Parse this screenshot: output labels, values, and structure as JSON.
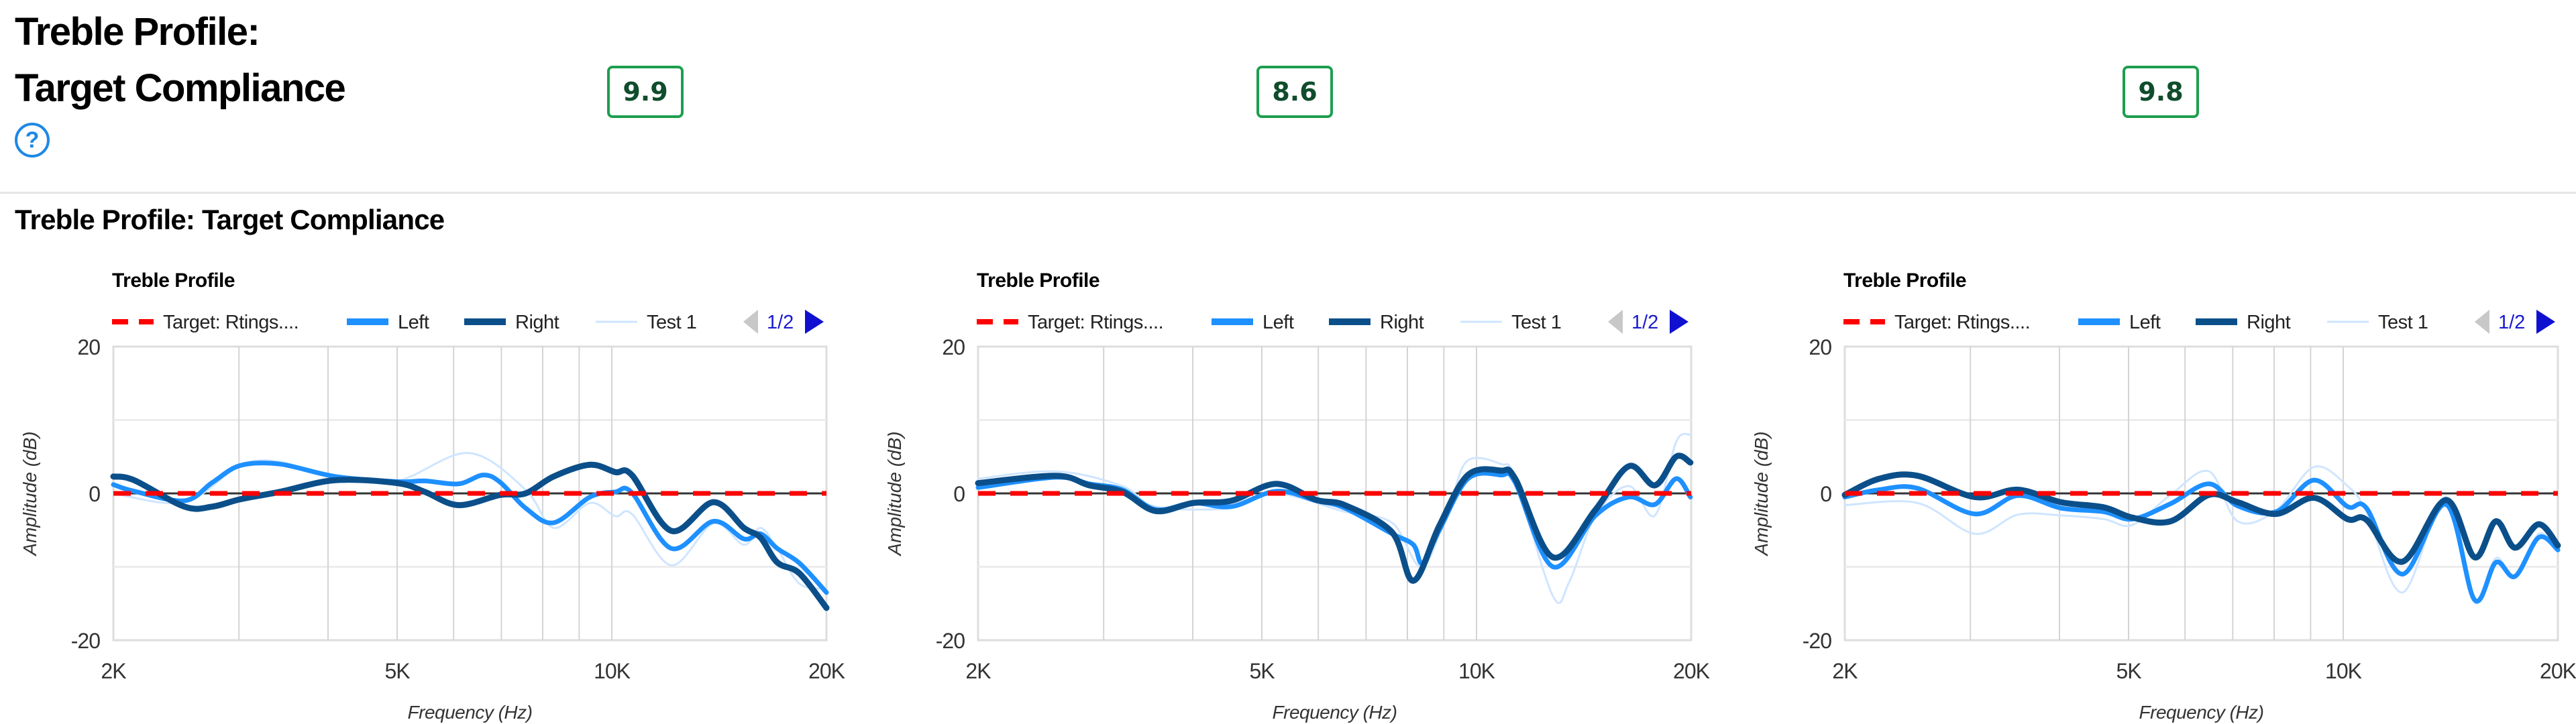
{
  "header": {
    "title_line1": "Treble Profile:",
    "title_line2": "Target Compliance",
    "help_icon": "question-circle-icon",
    "scores": [
      "9.9",
      "8.6",
      "9.8"
    ],
    "score_color": "#1e9e4f"
  },
  "section_title": "Treble Profile: Target Compliance",
  "chart_data": [
    {
      "type": "line",
      "title": "Treble Profile",
      "xlabel": "Frequency (Hz)",
      "ylabel": "Amplitude (dB)",
      "xscale": "log",
      "xlim": [
        2000,
        20000
      ],
      "ylim": [
        -20,
        20
      ],
      "xticks": [
        {
          "v": 2000,
          "label": "2K"
        },
        {
          "v": 5000,
          "label": "5K"
        },
        {
          "v": 10000,
          "label": "10K"
        },
        {
          "v": 20000,
          "label": "20K"
        }
      ],
      "yticks": [
        {
          "v": 20,
          "label": "20"
        },
        {
          "v": 0,
          "label": "0"
        },
        {
          "v": -20,
          "label": "-20"
        }
      ],
      "grid": true,
      "legend": {
        "placement": "top",
        "page": "1/2"
      },
      "series": [
        {
          "name": "Target: Rtings....",
          "color": "#ff0000",
          "style": "dashed",
          "x": [
            2000,
            20000
          ],
          "y": [
            0,
            0
          ]
        },
        {
          "name": "Left",
          "color": "#1e90ff",
          "style": "solid",
          "x": [
            2000,
            2138,
            2516,
            2754,
            3013,
            3420,
            4097,
            5003,
            5470,
            6096,
            6600,
            6978,
            7570,
            8288,
            9316,
            10110,
            10670,
            12120,
            13880,
            15320,
            16160,
            17060,
            18330,
            20000
          ],
          "y": [
            1.2,
            0.3,
            -1,
            1.5,
            3.8,
            4,
            2.3,
            1.6,
            1.7,
            1.3,
            2.5,
            1.5,
            -2,
            -4,
            -0.5,
            0.2,
            0.1,
            -7.5,
            -3.8,
            -6.2,
            -5.5,
            -7.5,
            -9.5,
            -13.5
          ]
        },
        {
          "name": "Right",
          "color": "#0b4f8a",
          "style": "solid",
          "x": [
            2000,
            2138,
            2516,
            2754,
            3013,
            3420,
            4097,
            5003,
            5470,
            6096,
            6978,
            7570,
            8288,
            9316,
            10110,
            10670,
            12120,
            13880,
            15320,
            16160,
            17060,
            18330,
            20000
          ],
          "y": [
            2.3,
            1.8,
            -1.8,
            -1.8,
            -0.8,
            0.2,
            1.8,
            1.4,
            0.2,
            -1.6,
            -0.2,
            0,
            2.3,
            3.9,
            2.9,
            2.5,
            -5.1,
            -1.2,
            -4.7,
            -6,
            -9.4,
            -10.9,
            -15.6
          ]
        },
        {
          "name": "Test 1",
          "color": "#cfe5ff",
          "style": "thin",
          "x": [
            2000,
            2516,
            3013,
            3420,
            4097,
            5003,
            6300,
            7570,
            8288,
            9316,
            10110,
            10670,
            12120,
            13880,
            15320,
            16160,
            17060,
            18330,
            20000
          ],
          "y": [
            0,
            -1.2,
            3.8,
            4.3,
            2.1,
            1.7,
            5.5,
            0.5,
            -4.7,
            -1.3,
            -3.1,
            -2.8,
            -9.8,
            -4.1,
            -7,
            -4.7,
            -7.5,
            -12.3,
            -13
          ]
        }
      ]
    },
    {
      "type": "line",
      "title": "Treble Profile",
      "xlabel": "Frequency (Hz)",
      "ylabel": "Amplitude (dB)",
      "xscale": "log",
      "xlim": [
        2000,
        20000
      ],
      "ylim": [
        -20,
        20
      ],
      "xticks": [
        {
          "v": 2000,
          "label": "2K"
        },
        {
          "v": 5000,
          "label": "5K"
        },
        {
          "v": 10000,
          "label": "10K"
        },
        {
          "v": 20000,
          "label": "20K"
        }
      ],
      "yticks": [
        {
          "v": 20,
          "label": "20"
        },
        {
          "v": 0,
          "label": "0"
        },
        {
          "v": -20,
          "label": "-20"
        }
      ],
      "grid": true,
      "legend": {
        "placement": "top",
        "page": "1/2"
      },
      "series": [
        {
          "name": "Target: Rtings....",
          "color": "#ff0000",
          "style": "dashed",
          "x": [
            2000,
            20000
          ],
          "y": [
            0,
            0
          ]
        },
        {
          "name": "Left",
          "color": "#1e90ff",
          "style": "solid",
          "x": [
            2000,
            2573,
            2865,
            3188,
            3548,
            4008,
            4530,
            5237,
            5965,
            6536,
            7614,
            8156,
            8400,
            8870,
            9726,
            10820,
            11330,
            12800,
            14690,
            16350,
            17790,
            19050,
            19950
          ],
          "y": [
            0.8,
            2.2,
            1.3,
            0.5,
            -2.2,
            -1.3,
            -1.8,
            0.3,
            -1,
            -2,
            -5.5,
            -7,
            -9.5,
            -5,
            2,
            2.5,
            1.5,
            -10,
            -3,
            -0.5,
            -1.5,
            2,
            -0.5
          ]
        },
        {
          "name": "Right",
          "color": "#0b4f8a",
          "style": "solid",
          "x": [
            2000,
            2573,
            2865,
            3188,
            3548,
            4008,
            4530,
            5237,
            5965,
            6536,
            7614,
            8156,
            8870,
            9726,
            10820,
            11330,
            12800,
            14690,
            16350,
            17790,
            19050,
            19950
          ],
          "y": [
            1.4,
            2.4,
            1.1,
            0.2,
            -2.4,
            -1.3,
            -1,
            1.3,
            -0.9,
            -1.6,
            -5.3,
            -11.9,
            -4.4,
            2.5,
            3.1,
            2,
            -8.7,
            -2.2,
            3.7,
            1.1,
            5,
            4.2
          ]
        },
        {
          "name": "Test 1",
          "color": "#cfe5ff",
          "style": "thin",
          "x": [
            2000,
            2573,
            3188,
            3548,
            4530,
            5237,
            6536,
            7614,
            8400,
            9200,
            9726,
            10820,
            11330,
            12800,
            13500,
            14690,
            16350,
            17790,
            19050,
            19950
          ],
          "y": [
            2,
            3,
            1,
            -1.8,
            -2,
            0,
            -2.5,
            -4,
            -10,
            -1,
            4.5,
            4,
            2,
            -14,
            -12,
            -3,
            1,
            -3,
            7,
            8
          ]
        }
      ]
    },
    {
      "type": "line",
      "title": "Treble Profile",
      "xlabel": "Frequency (Hz)",
      "ylabel": "Amplitude (dB)",
      "xscale": "log",
      "xlim": [
        2000,
        20000
      ],
      "ylim": [
        -20,
        20
      ],
      "xticks": [
        {
          "v": 2000,
          "label": "2K"
        },
        {
          "v": 5000,
          "label": "5K"
        },
        {
          "v": 10000,
          "label": "10K"
        },
        {
          "v": 20000,
          "label": "20K"
        }
      ],
      "yticks": [
        {
          "v": 20,
          "label": "20"
        },
        {
          "v": 0,
          "label": "0"
        },
        {
          "v": -20,
          "label": "-20"
        }
      ],
      "grid": true,
      "legend": {
        "placement": "top",
        "page": "1/2"
      },
      "series": [
        {
          "name": "Target: Rtings....",
          "color": "#ff0000",
          "style": "dashed",
          "x": [
            2000,
            20000
          ],
          "y": [
            0,
            0
          ]
        },
        {
          "name": "Left",
          "color": "#1e90ff",
          "style": "solid",
          "x": [
            2000,
            2236,
            2529,
            3044,
            3497,
            4018,
            4615,
            5063,
            5728,
            6483,
            7111,
            8051,
            9097,
            10140,
            10780,
            12110,
            13930,
            15280,
            16370,
            17420,
            18800,
            20000
          ],
          "y": [
            -0.5,
            0.5,
            0.7,
            -2.8,
            -0.3,
            -2,
            -2.5,
            -3.5,
            -1.4,
            1.3,
            -1.7,
            -2.5,
            1.8,
            -1.8,
            -2,
            -11,
            -1.5,
            -14.5,
            -9.4,
            -11.3,
            -6,
            -7.7
          ]
        },
        {
          "name": "Right",
          "color": "#0b4f8a",
          "style": "solid",
          "x": [
            2000,
            2236,
            2529,
            3044,
            3497,
            4018,
            4615,
            5063,
            5728,
            6483,
            7111,
            8051,
            9097,
            10140,
            10780,
            12110,
            13930,
            15280,
            16370,
            17420,
            18800,
            20000
          ],
          "y": [
            -0.2,
            2,
            2.4,
            -0.5,
            0.5,
            -1.2,
            -1.9,
            -3.3,
            -3.8,
            -0.2,
            -1.2,
            -2.8,
            -0.6,
            -3.5,
            -3.6,
            -9.3,
            -0.9,
            -8.7,
            -3.8,
            -7.4,
            -4.2,
            -7.1
          ]
        },
        {
          "name": "Test 1",
          "color": "#cfe5ff",
          "style": "thin",
          "x": [
            2000,
            2529,
            3044,
            3497,
            4018,
            4615,
            5063,
            5728,
            6483,
            7111,
            8051,
            9097,
            10140,
            10780,
            12110,
            13930,
            15280,
            16370,
            17420,
            18800,
            20000
          ],
          "y": [
            -1.6,
            -1.3,
            -5.5,
            -2.9,
            -3,
            -3.5,
            -4.3,
            -0.2,
            3,
            -3.8,
            -2.3,
            3.6,
            1,
            -2.5,
            -13.5,
            -0.5,
            -14.8,
            -8.8,
            -11.5,
            -5.5,
            -8
          ]
        }
      ]
    }
  ]
}
